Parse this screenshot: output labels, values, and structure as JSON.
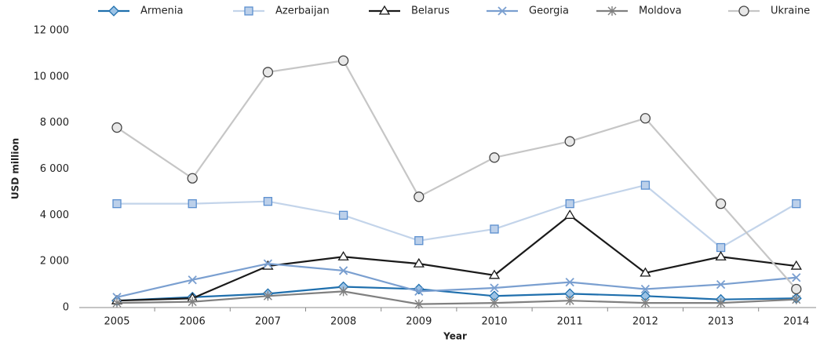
{
  "chart_data": {
    "type": "line",
    "x_label": "Year",
    "y_label": "USD million",
    "categories": [
      "2005",
      "2006",
      "2007",
      "2008",
      "2009",
      "2010",
      "2011",
      "2012",
      "2013",
      "2014"
    ],
    "series": [
      {
        "name": "Armenia",
        "color": "#1f6fad",
        "marker": "diamond",
        "values": [
          300,
          450,
          600,
          900,
          800,
          500,
          600,
          500,
          350,
          400
        ]
      },
      {
        "name": "Azerbaijan",
        "color": "#c3d4ea",
        "marker": "square",
        "values": [
          4500,
          4500,
          4600,
          4000,
          2900,
          3400,
          4500,
          5300,
          2600,
          4500
        ]
      },
      {
        "name": "Belarus",
        "color": "#1a1a1a",
        "marker": "triangle",
        "values": [
          300,
          400,
          1800,
          2200,
          1900,
          1400,
          4000,
          1500,
          2200,
          1800
        ]
      },
      {
        "name": "Georgia",
        "color": "#7a9fd0",
        "marker": "x",
        "values": [
          450,
          1200,
          1900,
          1600,
          700,
          850,
          1100,
          800,
          1000,
          1300
        ]
      },
      {
        "name": "Moldova",
        "color": "#808080",
        "marker": "star",
        "values": [
          200,
          250,
          500,
          700,
          150,
          200,
          300,
          200,
          200,
          350
        ]
      },
      {
        "name": "Ukraine",
        "color": "#c6c6c6",
        "marker": "circle",
        "values": [
          7800,
          5600,
          10200,
          10700,
          4800,
          6500,
          7200,
          8200,
          4500,
          800
        ]
      }
    ],
    "ylim": [
      0,
      12000
    ],
    "yticks": [
      0,
      {
        "value": 2000,
        "label": "2 000"
      },
      {
        "value": 4000,
        "label": "4 000"
      },
      {
        "value": 6000,
        "label": "6 000"
      },
      {
        "value": 8000,
        "label": "8 000"
      },
      {
        "value": 10000,
        "label": "10 000"
      },
      {
        "value": 12000,
        "label": "12 000"
      }
    ],
    "grid": false,
    "legend": "top"
  }
}
